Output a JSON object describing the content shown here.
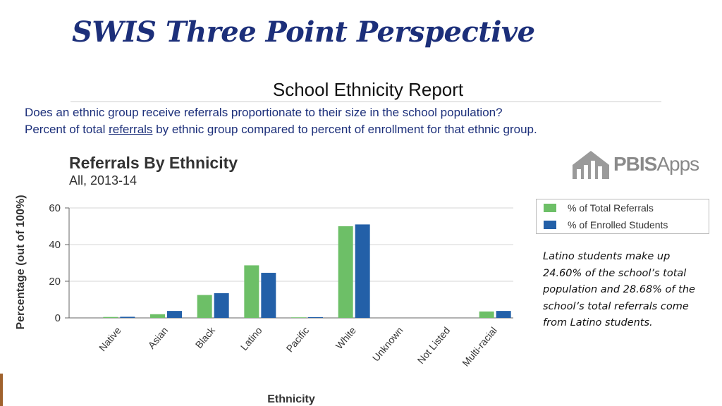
{
  "slide": {
    "title": "SWIS Three Point Perspective",
    "report_title": "School Ethnicity Report",
    "question": "Does an ethnic group receive referrals proportionate to their size in the school population?",
    "desc_prefix": "Percent of total ",
    "desc_link": "referrals",
    "desc_suffix": " by ethnic group compared to percent of enrollment for that ethnic group.",
    "logo_main": "PBIS",
    "logo_sub": "Apps",
    "note": "Latino students  make up 24.60% of the school’s total population and 28.68% of the school’s total referrals come from Latino students."
  },
  "chart_data": {
    "type": "bar",
    "title": "Referrals By Ethnicity",
    "subtitle": "All, 2013-14",
    "xlabel": "Ethnicity",
    "ylabel": "Percentage (out of 100%)",
    "ylim": [
      0,
      60
    ],
    "yticks": [
      0,
      20,
      40,
      60
    ],
    "grid": true,
    "legend_position": "right",
    "categories": [
      "Native",
      "Asian",
      "Black",
      "Latino",
      "Pacific",
      "White",
      "Unknown",
      "Not Listed",
      "Multi-racial"
    ],
    "series": [
      {
        "name": "% of Total Referrals",
        "color": "#6dbf67",
        "values": [
          0.5,
          2,
          12.5,
          28.68,
          0.3,
          50,
          0,
          0,
          3.5
        ]
      },
      {
        "name": "% of Enrolled Students",
        "color": "#2360a8",
        "values": [
          0.6,
          3.8,
          13.5,
          24.6,
          0.4,
          51,
          0,
          0,
          3.8
        ]
      }
    ]
  }
}
